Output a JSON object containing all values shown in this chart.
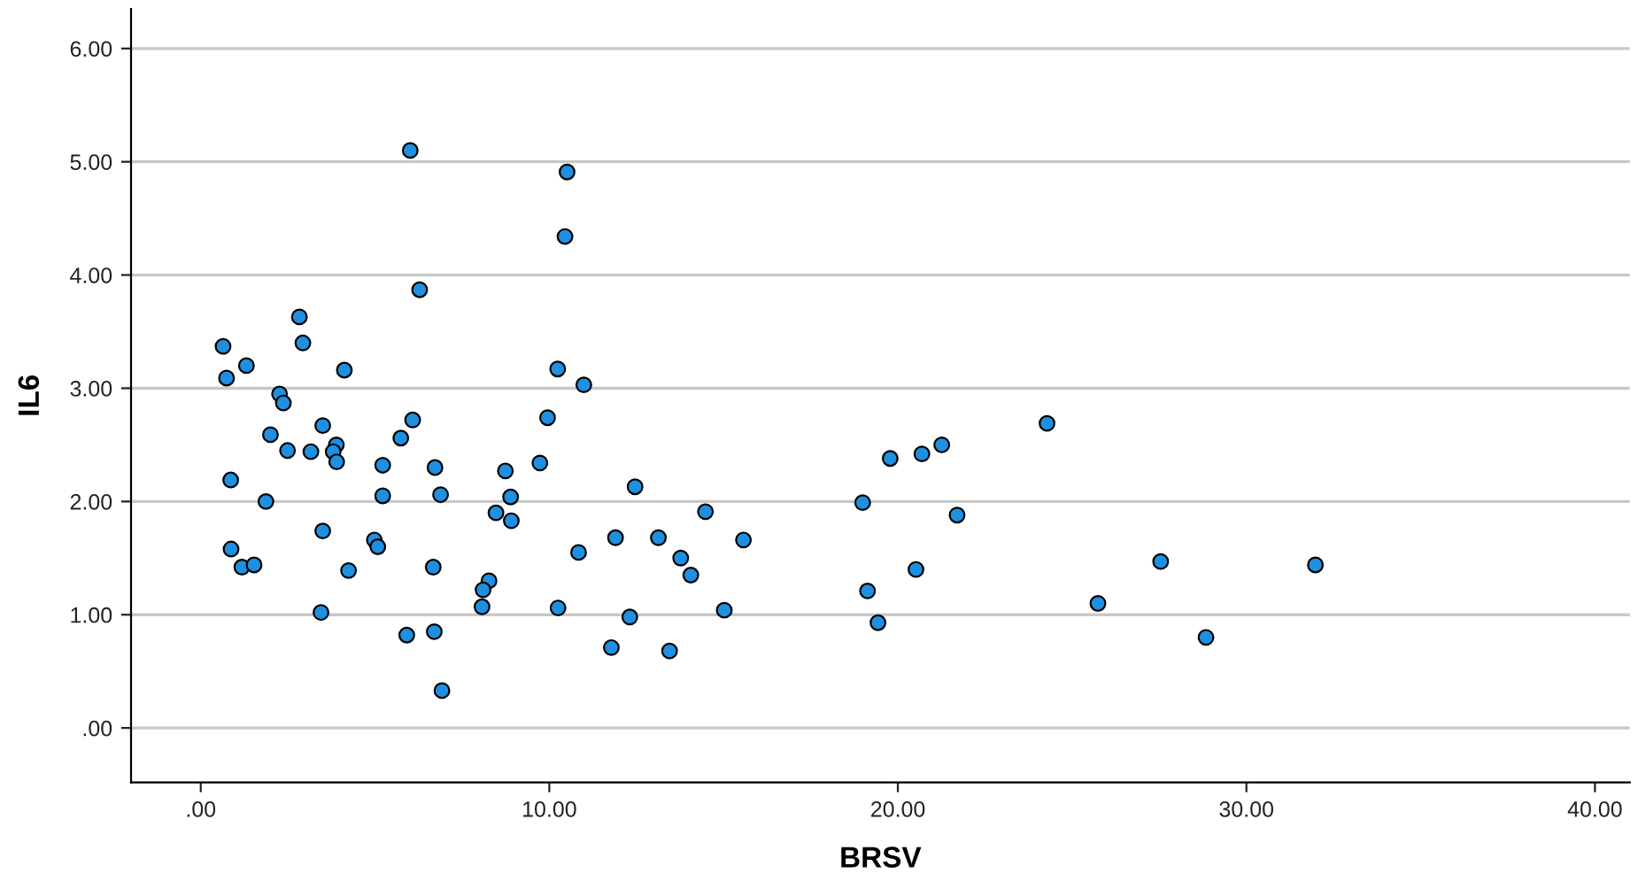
{
  "chart_data": {
    "type": "scatter",
    "xlabel": "BRSV",
    "ylabel": "IL6",
    "x": [
      6.01,
      6.28,
      2.83,
      0.64,
      2.93,
      1.31,
      0.74,
      4.12,
      2.26,
      2.37,
      2.0,
      3.5,
      6.08,
      5.74,
      2.49,
      3.16,
      3.89,
      3.8,
      3.9,
      5.22,
      6.72,
      0.86,
      1.87,
      5.22,
      6.88,
      3.5,
      4.98,
      5.08,
      0.87,
      1.18,
      1.53,
      4.24,
      6.67,
      3.45,
      5.91,
      6.7,
      6.92,
      10.51,
      10.45,
      10.24,
      10.99,
      9.95,
      9.73,
      8.74,
      8.89,
      8.47,
      8.91,
      12.46,
      14.48,
      11.9,
      13.13,
      15.57,
      10.84,
      13.77,
      14.06,
      8.27,
      8.1,
      8.07,
      10.25,
      12.31,
      15.02,
      11.78,
      13.45,
      24.28,
      19.78,
      20.69,
      21.26,
      18.99,
      21.7,
      20.52,
      19.13,
      19.43,
      25.74,
      27.54,
      28.84,
      31.98
    ],
    "series": [
      {
        "color": "#1f8fe0",
        "values": [
          5.1,
          3.87,
          3.63,
          3.37,
          3.4,
          3.2,
          3.09,
          3.16,
          2.95,
          2.87,
          2.59,
          2.67,
          2.72,
          2.56,
          2.45,
          2.44,
          2.5,
          2.44,
          2.35,
          2.32,
          2.3,
          2.19,
          2.0,
          2.05,
          2.06,
          1.74,
          1.66,
          1.6,
          1.58,
          1.42,
          1.44,
          1.39,
          1.42,
          1.02,
          0.82,
          0.85,
          0.33,
          4.91,
          4.34,
          3.17,
          3.03,
          2.74,
          2.34,
          2.27,
          2.04,
          1.9,
          1.83,
          2.13,
          1.91,
          1.68,
          1.68,
          1.66,
          1.55,
          1.5,
          1.35,
          1.3,
          1.22,
          1.07,
          1.06,
          0.98,
          1.04,
          0.71,
          0.68,
          2.69,
          2.38,
          2.42,
          2.5,
          1.99,
          1.88,
          1.4,
          1.21,
          0.93,
          1.1,
          1.47,
          0.8,
          1.44
        ]
      }
    ],
    "xlim": [
      -2,
      41
    ],
    "ylim": [
      -0.48,
      6.35
    ],
    "xticks": [
      {
        "value": 0,
        "label": ".00"
      },
      {
        "value": 10,
        "label": "10.00"
      },
      {
        "value": 20,
        "label": "20.00"
      },
      {
        "value": 30,
        "label": "30.00"
      },
      {
        "value": 40,
        "label": "40.00"
      }
    ],
    "yticks": [
      {
        "value": 0,
        "label": ".00"
      },
      {
        "value": 1,
        "label": "1.00"
      },
      {
        "value": 2,
        "label": "2.00"
      },
      {
        "value": 3,
        "label": "3.00"
      },
      {
        "value": 4,
        "label": "4.00"
      },
      {
        "value": 5,
        "label": "5.00"
      },
      {
        "value": 6,
        "label": "6.00"
      }
    ],
    "grid": "y",
    "marker": "circle"
  }
}
